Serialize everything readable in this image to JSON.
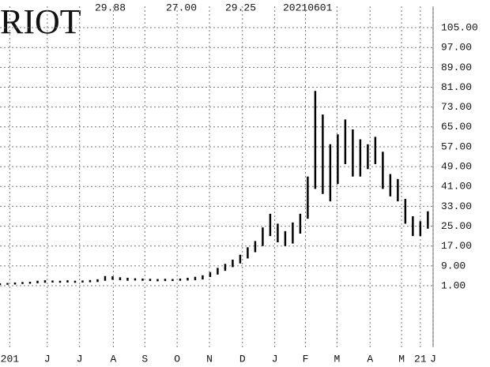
{
  "chart_data": {
    "type": "range-bar",
    "title": "RIOT",
    "annotations": [
      "29.88",
      "27.00",
      "29.25",
      "20210601"
    ],
    "x": [
      0,
      1,
      2,
      3,
      4,
      5,
      6,
      7,
      8,
      9,
      10,
      11,
      12,
      13,
      14,
      15,
      16,
      17,
      18,
      19,
      20,
      21,
      22,
      23,
      24,
      25,
      26,
      27,
      28,
      29,
      30,
      31,
      32,
      33,
      34,
      35,
      36,
      37,
      38,
      39,
      40,
      41,
      42,
      43,
      44,
      45,
      46,
      47,
      48,
      49,
      50,
      51,
      52,
      53,
      54,
      55,
      56,
      57
    ],
    "high": [
      2.0,
      2.1,
      2.3,
      2.5,
      2.6,
      3.0,
      3.2,
      3.1,
      3.0,
      3.2,
      3.0,
      3.1,
      3.3,
      3.6,
      4.9,
      4.8,
      4.4,
      4.2,
      4.0,
      3.9,
      3.8,
      3.7,
      3.8,
      3.7,
      3.9,
      4.2,
      4.6,
      5.2,
      6.5,
      8.2,
      9.8,
      11.5,
      13.5,
      16.5,
      19.0,
      24.5,
      30.0,
      26.0,
      23.0,
      26.5,
      30.0,
      45.0,
      79.5,
      70.0,
      58.0,
      62.0,
      68.0,
      64.0,
      60.0,
      58.0,
      61.0,
      55.0,
      46.0,
      44.0,
      36.0,
      29.0,
      27.0,
      31.0
    ],
    "low": [
      1.3,
      1.4,
      1.5,
      1.7,
      1.8,
      2.0,
      2.2,
      2.3,
      2.2,
      2.3,
      2.2,
      2.3,
      2.4,
      2.5,
      3.0,
      3.4,
      3.2,
      3.0,
      3.1,
      3.0,
      2.9,
      2.8,
      2.9,
      2.9,
      3.0,
      3.1,
      3.2,
      3.5,
      4.5,
      5.5,
      7.0,
      8.5,
      10.0,
      12.0,
      14.5,
      17.0,
      21.0,
      18.5,
      17.0,
      18.0,
      22.0,
      28.0,
      40.0,
      38.0,
      35.0,
      42.0,
      50.0,
      45.0,
      45.0,
      48.0,
      50.0,
      40.0,
      37.0,
      35.0,
      26.0,
      21.0,
      21.0,
      24.0
    ],
    "color": "#000000",
    "xlim": [
      0,
      57.7
    ],
    "xticks": [
      {
        "value": 1.3,
        "label": "201"
      },
      {
        "value": 6.3,
        "label": "J"
      },
      {
        "value": 10.6,
        "label": "J"
      },
      {
        "value": 15.1,
        "label": "A"
      },
      {
        "value": 19.3,
        "label": "S"
      },
      {
        "value": 23.6,
        "label": "O"
      },
      {
        "value": 27.9,
        "label": "N"
      },
      {
        "value": 32.3,
        "label": "D"
      },
      {
        "value": 36.6,
        "label": "J"
      },
      {
        "value": 40.7,
        "label": "F"
      },
      {
        "value": 44.9,
        "label": "M"
      },
      {
        "value": 49.3,
        "label": "A"
      },
      {
        "value": 53.5,
        "label": "M"
      },
      {
        "value": 56,
        "label": "21"
      },
      {
        "value": 57.7,
        "label": "J"
      }
    ],
    "ylim": [
      -23.8,
      113.6
    ],
    "yticks": [
      {
        "value": 105,
        "label": "105.00"
      },
      {
        "value": 97,
        "label": "97.00"
      },
      {
        "value": 89,
        "label": "89.00"
      },
      {
        "value": 81,
        "label": "81.00"
      },
      {
        "value": 73,
        "label": "73.00"
      },
      {
        "value": 65,
        "label": "65.00"
      },
      {
        "value": 57,
        "label": "57.00"
      },
      {
        "value": 49,
        "label": "49.00"
      },
      {
        "value": 41,
        "label": "41.00"
      },
      {
        "value": 33,
        "label": "33.00"
      },
      {
        "value": 25,
        "label": "25.00"
      },
      {
        "value": 17,
        "label": "17.00"
      },
      {
        "value": 9,
        "label": "9.00"
      },
      {
        "value": 1,
        "label": "1.00"
      }
    ],
    "grid": true
  }
}
